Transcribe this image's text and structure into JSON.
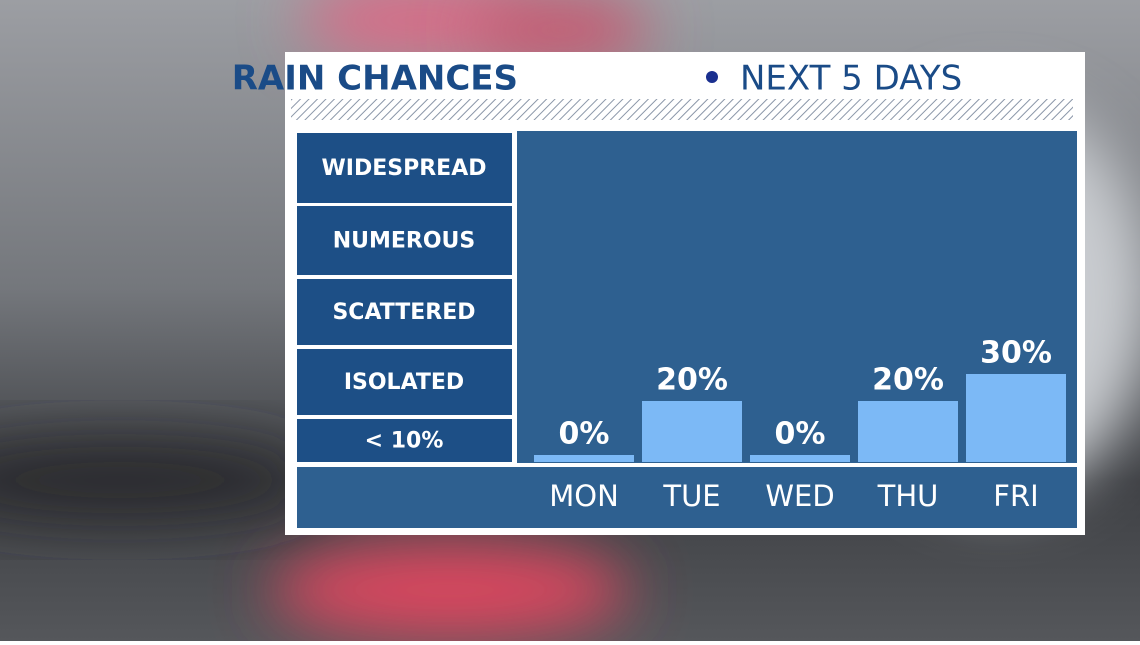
{
  "chart_data": {
    "type": "bar",
    "title_left": "RAIN CHANCES",
    "title_right": "NEXT 5 DAYS",
    "levels": [
      "WIDESPREAD",
      "NUMEROUS",
      "SCATTERED",
      "ISOLATED",
      "< 10%"
    ],
    "categories": [
      "MON",
      "TUE",
      "WED",
      "THU",
      "FRI"
    ],
    "values": [
      0,
      20,
      0,
      20,
      30
    ],
    "value_labels": [
      "0%",
      "20%",
      "0%",
      "20%",
      "30%"
    ],
    "color": "#7cb9f6"
  }
}
